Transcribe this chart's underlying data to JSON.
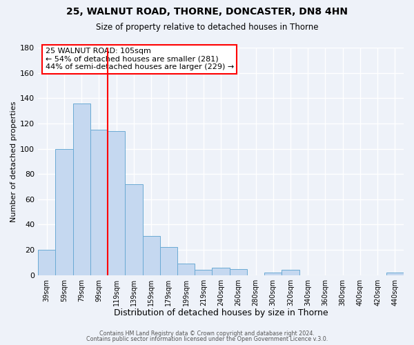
{
  "title": "25, WALNUT ROAD, THORNE, DONCASTER, DN8 4HN",
  "subtitle": "Size of property relative to detached houses in Thorne",
  "xlabel": "Distribution of detached houses by size in Thorne",
  "ylabel": "Number of detached properties",
  "bar_labels": [
    "39sqm",
    "59sqm",
    "79sqm",
    "99sqm",
    "119sqm",
    "139sqm",
    "159sqm",
    "179sqm",
    "199sqm",
    "219sqm",
    "240sqm",
    "260sqm",
    "280sqm",
    "300sqm",
    "320sqm",
    "340sqm",
    "360sqm",
    "380sqm",
    "400sqm",
    "420sqm",
    "440sqm"
  ],
  "bar_values": [
    20,
    100,
    136,
    115,
    114,
    72,
    31,
    22,
    9,
    4,
    6,
    5,
    0,
    2,
    4,
    0,
    0,
    0,
    0,
    0,
    2
  ],
  "bar_color": "#c5d8f0",
  "bar_edge_color": "#6aaad4",
  "ylim": [
    0,
    180
  ],
  "yticks": [
    0,
    20,
    40,
    60,
    80,
    100,
    120,
    140,
    160,
    180
  ],
  "vline_x_index": 3.5,
  "vline_color": "red",
  "annotation_title": "25 WALNUT ROAD: 105sqm",
  "annotation_line1": "← 54% of detached houses are smaller (281)",
  "annotation_line2": "44% of semi-detached houses are larger (229) →",
  "annotation_box_color": "white",
  "annotation_box_edge_color": "red",
  "footer1": "Contains HM Land Registry data © Crown copyright and database right 2024.",
  "footer2": "Contains public sector information licensed under the Open Government Licence v.3.0.",
  "bg_color": "#eef2f9",
  "grid_color": "white",
  "title_fontsize": 10,
  "subtitle_fontsize": 8.5,
  "ylabel_fontsize": 8,
  "xlabel_fontsize": 9
}
